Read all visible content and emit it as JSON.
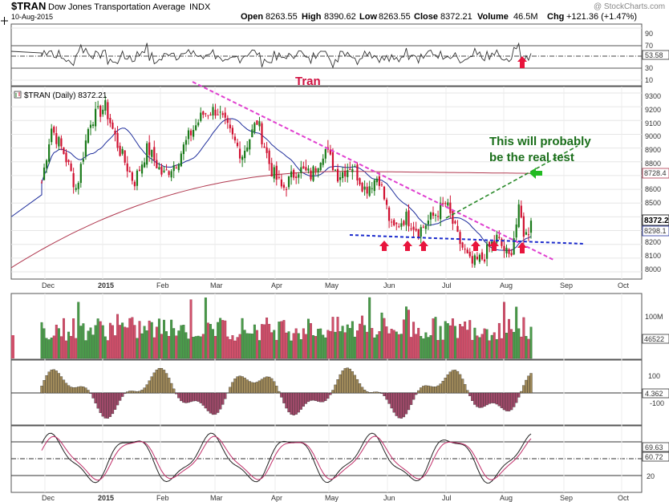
{
  "header": {
    "symbol": "$TRAN",
    "name": "Dow Jones Transportation Average",
    "exchange": "INDX",
    "date": "10-Aug-2015",
    "open_label": "Open",
    "open": "8263.55",
    "high_label": "High",
    "high": "8390.62",
    "low_label": "Low",
    "low": "8263.55",
    "close_label": "Close",
    "close": "8372.21",
    "volume_label": "Volume",
    "volume": "46.5M",
    "chg_label": "Chg",
    "chg": "+121.36 (+1.47%)",
    "watermark": "@ StockCharts.com"
  },
  "annotations": {
    "tran": "Tran",
    "real_test_line1": "This will probably",
    "real_test_line2": "be the real test"
  },
  "colors": {
    "up_candle": "#1a7a1a",
    "down_candle": "#d01030",
    "ma50": "#1f2e9c",
    "ma200": "#b0384f",
    "resistance_line": "#e040d0",
    "support_line": "#1a2acc",
    "channel_line": "#2a8a2a",
    "arrow_red": "#e8143c",
    "arrow_green": "#22bb22",
    "annotation_red": "#d01040",
    "annotation_green": "#1a6e1a",
    "ppo_positive": "#a08a5a",
    "ppo_negative": "#a04a6a"
  },
  "price_panel": {
    "legend": "$TRAN (Daily) 8372.21",
    "y_ticks": [
      "9300",
      "9200",
      "9100",
      "9000",
      "8900",
      "8800",
      "8700",
      "8600",
      "8500",
      "8400",
      "8300",
      "8200",
      "8100",
      "8000"
    ],
    "last_price": "8372.2",
    "ma200_value": "8728.4",
    "ma50_value": "8298.1",
    "tick_8700": "8700"
  },
  "rsi_panel": {
    "y_ticks": [
      "90",
      "70",
      "50",
      "30",
      "10"
    ],
    "value": "53.58"
  },
  "volume_panel": {
    "y_tick": "100M",
    "value": "46522"
  },
  "ppo_panel": {
    "y_ticks": [
      "100",
      "0",
      "-100"
    ],
    "value": "4.362"
  },
  "stoch_panel": {
    "y_ticks": [
      "80",
      "50",
      "20"
    ],
    "value_k": "69.63",
    "value_d": "60.72"
  },
  "x_axis": {
    "labels": [
      "Dec",
      "2015",
      "Feb",
      "Mar",
      "Apr",
      "May",
      "Jun",
      "Jul",
      "Aug",
      "Sep",
      "Oct"
    ]
  },
  "chart_data": {
    "type": "candlestick",
    "ylim": [
      7950,
      9350
    ],
    "anchors": [
      {
        "date": "2014-11-28",
        "close": 8650
      },
      {
        "date": "2014-12-03",
        "close": 9050
      },
      {
        "date": "2014-12-10",
        "close": 8850
      },
      {
        "date": "2014-12-16",
        "close": 8600
      },
      {
        "date": "2014-12-23",
        "close": 9100
      },
      {
        "date": "2014-12-31",
        "close": 9200
      },
      {
        "date": "2015-01-07",
        "close": 8900
      },
      {
        "date": "2015-01-15",
        "close": 8650
      },
      {
        "date": "2015-01-22",
        "close": 8900
      },
      {
        "date": "2015-01-30",
        "close": 8700
      },
      {
        "date": "2015-02-06",
        "close": 8800
      },
      {
        "date": "2015-02-13",
        "close": 9000
      },
      {
        "date": "2015-02-20",
        "close": 9150
      },
      {
        "date": "2015-02-27",
        "close": 9180
      },
      {
        "date": "2015-03-06",
        "close": 9000
      },
      {
        "date": "2015-03-12",
        "close": 8850
      },
      {
        "date": "2015-03-20",
        "close": 9100
      },
      {
        "date": "2015-03-27",
        "close": 8750
      },
      {
        "date": "2015-04-02",
        "close": 8600
      },
      {
        "date": "2015-04-10",
        "close": 8750
      },
      {
        "date": "2015-04-17",
        "close": 8700
      },
      {
        "date": "2015-04-24",
        "close": 8900
      },
      {
        "date": "2015-05-01",
        "close": 8700
      },
      {
        "date": "2015-05-08",
        "close": 8780
      },
      {
        "date": "2015-05-15",
        "close": 8600
      },
      {
        "date": "2015-05-22",
        "close": 8700
      },
      {
        "date": "2015-05-29",
        "close": 8300
      },
      {
        "date": "2015-06-05",
        "close": 8400
      },
      {
        "date": "2015-06-12",
        "close": 8300
      },
      {
        "date": "2015-06-19",
        "close": 8400
      },
      {
        "date": "2015-06-26",
        "close": 8500
      },
      {
        "date": "2015-07-02",
        "close": 8250
      },
      {
        "date": "2015-07-09",
        "close": 8050
      },
      {
        "date": "2015-07-15",
        "close": 8100
      },
      {
        "date": "2015-07-22",
        "close": 8250
      },
      {
        "date": "2015-07-29",
        "close": 8100
      },
      {
        "date": "2015-08-03",
        "close": 8450
      },
      {
        "date": "2015-08-06",
        "close": 8250
      },
      {
        "date": "2015-08-10",
        "close": 8372
      }
    ]
  }
}
